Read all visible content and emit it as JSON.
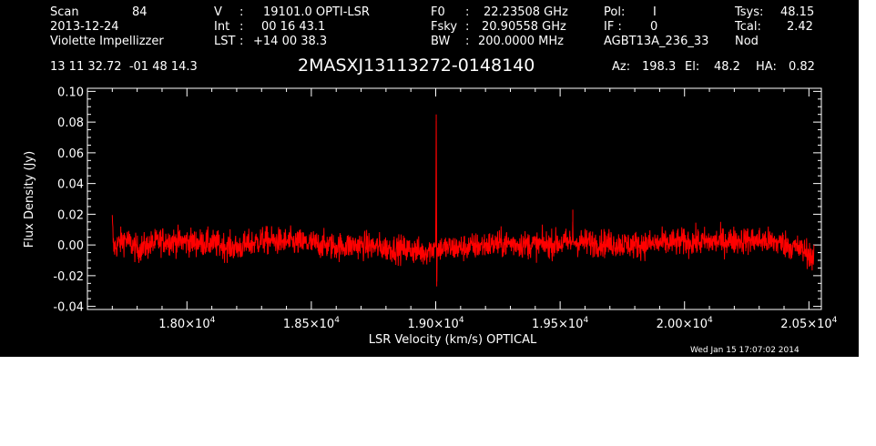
{
  "header": {
    "row1": {
      "scan_label": "Scan",
      "scan_value": "84",
      "v_label": "V",
      "v_sep": ":",
      "v_value": "19101.0 OPTI-LSR",
      "f0_label": "F0",
      "f0_sep": ":",
      "f0_value": "22.23508 GHz",
      "pol_label": "Pol:",
      "pol_value": "I",
      "tsys_label": "Tsys:",
      "tsys_value": "48.15"
    },
    "row2": {
      "date": "2013-12-24",
      "int_label": "Int",
      "int_sep": ":",
      "int_value": "00 16 43.1",
      "fsky_label": "Fsky",
      "fsky_sep": ":",
      "fsky_value": "20.90558 GHz",
      "if_label": "IF :",
      "if_value": "0",
      "tcal_label": "Tcal:",
      "tcal_value": "2.42"
    },
    "row3": {
      "observer": "Violette Impellizzer",
      "lst_label": "LST",
      "lst_sep": ":",
      "lst_value": "+14 00 38.3",
      "bw_label": "BW",
      "bw_sep": ":",
      "bw_value": "200.0000 MHz",
      "project": "AGBT13A_236_33",
      "proc": "Nod"
    },
    "coords": "13 11 32.72  -01 48 14.3",
    "source": "2MASXJ13113272-0148140",
    "az_label": "Az:",
    "az_value": "198.3",
    "el_label": "El:",
    "el_value": "48.2",
    "ha_label": "HA:",
    "ha_value": "0.82"
  },
  "footer_timestamp": "Wed Jan 15 17:07:02 2014",
  "colors": {
    "background": "#000000",
    "axes": "#ffffff",
    "trace": "#ff0000"
  },
  "chart_data": {
    "type": "line",
    "xlabel": "LSR Velocity (km/s) OPTICAL",
    "ylabel": "Flux Density (Jy)",
    "xlim": [
      17600,
      20550
    ],
    "ylim": [
      -0.042,
      0.102
    ],
    "x_ticks": [
      {
        "value": 18000,
        "mantissa": "1.80",
        "exponent": "4"
      },
      {
        "value": 18500,
        "mantissa": "1.85",
        "exponent": "4"
      },
      {
        "value": 19000,
        "mantissa": "1.90",
        "exponent": "4"
      },
      {
        "value": 19500,
        "mantissa": "1.95",
        "exponent": "4"
      },
      {
        "value": 20000,
        "mantissa": "2.00",
        "exponent": "4"
      },
      {
        "value": 20500,
        "mantissa": "2.05",
        "exponent": "4"
      }
    ],
    "y_ticks": [
      {
        "value": 0.1,
        "label": "0.10"
      },
      {
        "value": 0.08,
        "label": "0.08"
      },
      {
        "value": 0.06,
        "label": "0.06"
      },
      {
        "value": 0.04,
        "label": "0.04"
      },
      {
        "value": 0.02,
        "label": "0.02"
      },
      {
        "value": 0.0,
        "label": "0.00"
      },
      {
        "value": -0.02,
        "label": "-0.02"
      },
      {
        "value": -0.04,
        "label": "-0.04"
      }
    ],
    "series": [
      {
        "x_range": [
          17700,
          20520
        ],
        "noise_rms_jy": 0.0045,
        "points": [
          [
            17700,
            0.015
          ],
          [
            17705,
            -0.002
          ],
          [
            17750,
            0.004
          ],
          [
            17800,
            -0.003
          ],
          [
            17900,
            0.003
          ],
          [
            18000,
            0.002
          ],
          [
            18100,
            0.001
          ],
          [
            18200,
            -0.002
          ],
          [
            18300,
            0.003
          ],
          [
            18400,
            0.002
          ],
          [
            18500,
            0.001
          ],
          [
            18600,
            -0.001
          ],
          [
            18700,
            0.0
          ],
          [
            18800,
            -0.002
          ],
          [
            18900,
            -0.003
          ],
          [
            18950,
            -0.005
          ],
          [
            19000,
            -0.001
          ],
          [
            19002,
            0.085
          ],
          [
            19004,
            -0.027
          ],
          [
            19006,
            -0.002
          ],
          [
            19100,
            -0.002
          ],
          [
            19200,
            0.0
          ],
          [
            19300,
            0.001
          ],
          [
            19400,
            0.0
          ],
          [
            19500,
            0.001
          ],
          [
            19550,
            0.002
          ],
          [
            19551,
            0.023
          ],
          [
            19552,
            0.002
          ],
          [
            19700,
            0.001
          ],
          [
            19800,
            0.0
          ],
          [
            19900,
            0.001
          ],
          [
            20000,
            0.002
          ],
          [
            20100,
            0.002
          ],
          [
            20200,
            0.003
          ],
          [
            20300,
            0.003
          ],
          [
            20400,
            0.001
          ],
          [
            20500,
            -0.005
          ],
          [
            20520,
            -0.012
          ]
        ]
      }
    ]
  }
}
